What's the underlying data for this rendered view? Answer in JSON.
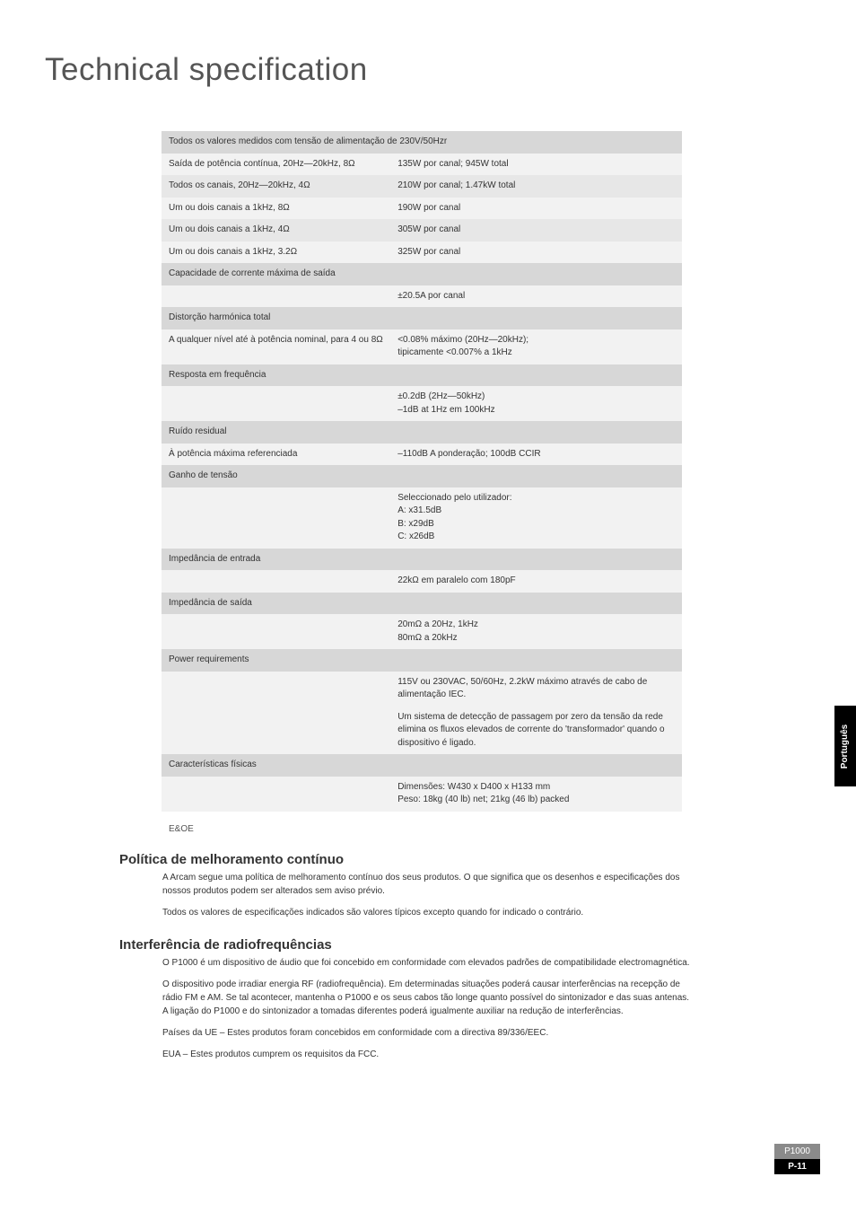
{
  "page_title": "Technical specification",
  "spec_rows": [
    {
      "type": "header",
      "label": "Todos os valores medidos com tensão de alimentação de 230V/50Hzr",
      "value": ""
    },
    {
      "type": "odd",
      "label": "Saída de potência contínua, 20Hz—20kHz, 8Ω",
      "value": "135W por canal; 945W total"
    },
    {
      "type": "even",
      "label": "Todos os canais, 20Hz—20kHz, 4Ω",
      "value": "210W por canal; 1.47kW total"
    },
    {
      "type": "odd",
      "label": "Um ou dois canais a 1kHz, 8Ω",
      "value": "190W por canal"
    },
    {
      "type": "even",
      "label": "Um ou dois canais a 1kHz, 4Ω",
      "value": "305W por canal"
    },
    {
      "type": "odd",
      "label": "Um ou dois canais a 1kHz, 3.2Ω",
      "value": "325W por canal"
    },
    {
      "type": "header",
      "label": "Capacidade de corrente máxima de saída",
      "value": ""
    },
    {
      "type": "odd",
      "label": "",
      "value": "±20.5A por canal"
    },
    {
      "type": "header",
      "label": "Distorção harmónica total",
      "value": ""
    },
    {
      "type": "odd",
      "label": "A qualquer nível até à potência nominal, para 4 ou 8Ω",
      "value": "<0.08% máximo (20Hz—20kHz);\ntipicamente <0.007% a 1kHz"
    },
    {
      "type": "header",
      "label": "Resposta em frequência",
      "value": ""
    },
    {
      "type": "odd",
      "label": "",
      "value": "±0.2dB (2Hz—50kHz)\n–1dB at 1Hz em 100kHz"
    },
    {
      "type": "header",
      "label": "Ruído residual",
      "value": ""
    },
    {
      "type": "odd",
      "label": "À potência máxima referenciada",
      "value": "–110dB A ponderação; 100dB CCIR"
    },
    {
      "type": "header",
      "label": "Ganho de tensão",
      "value": ""
    },
    {
      "type": "odd",
      "label": "",
      "value": "Seleccionado pelo utilizador:\nA: x31.5dB\nB: x29dB\nC: x26dB"
    },
    {
      "type": "header",
      "label": "Impedância de entrada",
      "value": ""
    },
    {
      "type": "odd",
      "label": "",
      "value": "22kΩ em paralelo com 180pF"
    },
    {
      "type": "header",
      "label": "Impedância de saída",
      "value": ""
    },
    {
      "type": "odd",
      "label": "",
      "value": "20mΩ a 20Hz, 1kHz\n80mΩ a 20kHz"
    },
    {
      "type": "header",
      "label": "Power requirements",
      "value": ""
    },
    {
      "type": "odd",
      "label": "",
      "value": "115V ou 230VAC, 50/60Hz, 2.2kW máximo através de cabo de alimentação IEC."
    },
    {
      "type": "odd",
      "label": "",
      "value": "Um sistema de detecção de passagem por zero da tensão da rede elimina os fluxos elevados de corrente do 'transformador' quando o dispositivo é ligado."
    },
    {
      "type": "header",
      "label": "Características físicas",
      "value": ""
    },
    {
      "type": "odd",
      "label": "",
      "value": "Dimensões: W430 x D400 x H133 mm\nPeso: 18kg (40 lb) net; 21kg (46 lb) packed"
    }
  ],
  "footnote": "E&OE",
  "sections": [
    {
      "heading": "Política de melhoramento contínuo",
      "paragraphs": [
        "A Arcam segue uma política de melhoramento contínuo dos seus produtos. O que significa que os desenhos e especificações dos nossos produtos podem ser alterados sem aviso prévio.",
        "Todos os valores de especificações indicados são valores típicos excepto quando for indicado o contrário."
      ]
    },
    {
      "heading": "Interferência de radiofrequências",
      "paragraphs": [
        "O P1000 é um dispositivo de áudio que foi concebido em conformidade com elevados padrões de compatibilidade electromagnética.",
        "O dispositivo pode irradiar energia RF (radiofrequência). Em determinadas situações poderá causar interferências na recepção de rádio FM e AM. Se tal acontecer, mantenha o P1000 e os seus cabos tão longe quanto possível do sintonizador e das suas antenas. A ligação do P1000 e do sintonizador a tomadas diferentes poderá igualmente auxiliar na redução de interferências.",
        "Países da UE – Estes produtos foram concebidos em conformidade com a directiva 89/336/EEC.",
        "EUA – Estes produtos cumprem os requisitos da FCC."
      ]
    }
  ],
  "side_tab": "Português",
  "footer_model": "P1000",
  "footer_page": "P-11"
}
